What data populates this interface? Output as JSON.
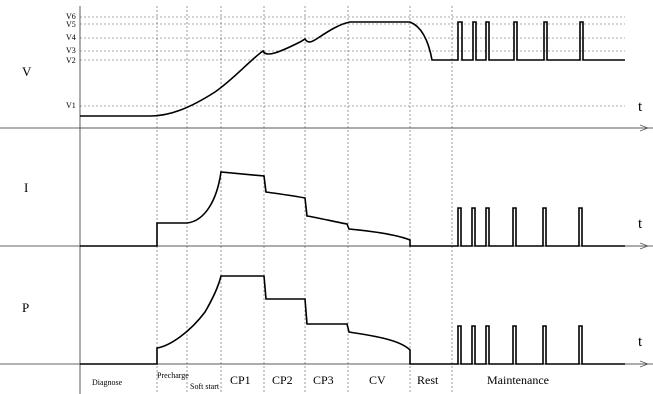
{
  "panels": [
    {
      "label": "V",
      "time_label": "t"
    },
    {
      "label": "I",
      "time_label": "t"
    },
    {
      "label": "P",
      "time_label": "t"
    }
  ],
  "voltage_levels": [
    "V6",
    "V5",
    "V4",
    "V3",
    "V2",
    "V1"
  ],
  "phases": [
    {
      "key": "diagnose",
      "label": "Diagnose"
    },
    {
      "key": "precharge",
      "label": "Precharge"
    },
    {
      "key": "soft-start",
      "label": "Soft start"
    },
    {
      "key": "cp1",
      "label": "CP1"
    },
    {
      "key": "cp2",
      "label": "CP2"
    },
    {
      "key": "cp3",
      "label": "CP3"
    },
    {
      "key": "cv",
      "label": "CV"
    },
    {
      "key": "rest",
      "label": "Rest"
    },
    {
      "key": "maintenance",
      "label": "Maintenance"
    }
  ]
}
